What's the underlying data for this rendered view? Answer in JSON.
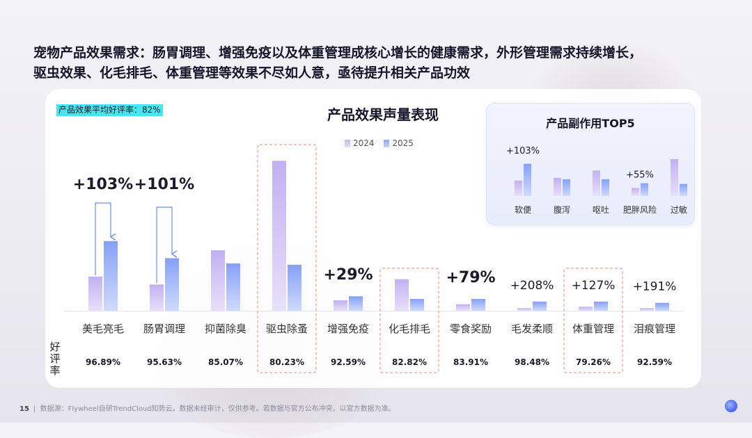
{
  "headline": {
    "line1": "宠物产品效果需求：肠胃调理、增强免疫以及体重管理成核心增长的健康需求，外形管理需求持续增长，",
    "line2": "驱虫效果、化毛排毛、体重管理等效果不尽如人意，亟待提升相关产品功效"
  },
  "avg_badge": "产品效果平均好评率：82%",
  "rate_label": "好评率",
  "footer": {
    "page": "15",
    "source": "数据源：Flywheel自研TrendCloud知势云。数据未经审计，仅供参考。若数据与官方公布冲突，以官方数据为准。"
  },
  "colors": {
    "series_2024": "#c9b9f3",
    "series_2025": "#8ea7f8",
    "highlight_border": "#f08a78",
    "badge_bg": "#46e6ee"
  },
  "chart_data": [
    {
      "type": "bar",
      "title": "产品效果声量表现",
      "categories": [
        "美毛亮毛",
        "肠胃调理",
        "抑菌除臭",
        "驱虫除蚤",
        "增强免疫",
        "化毛排毛",
        "零食奖励",
        "毛发柔顺",
        "体重管理",
        "泪痕管理"
      ],
      "series": [
        {
          "name": "2024",
          "values": [
            26,
            20,
            46,
            114,
            8,
            24,
            5,
            2,
            3,
            2
          ]
        },
        {
          "name": "2025",
          "values": [
            53,
            40,
            36,
            35,
            11,
            9,
            9,
            7,
            7,
            6
          ]
        }
      ],
      "growth_labels": [
        "+103%",
        "+101%",
        "",
        "",
        "+29%",
        "",
        "+79%",
        "+208%",
        "+127%",
        "+191%"
      ],
      "growth_bold": [
        true,
        true,
        false,
        false,
        true,
        false,
        true,
        false,
        false,
        false
      ],
      "positive_rates": [
        "96.89%",
        "95.63%",
        "85.07%",
        "80.23%",
        "92.59%",
        "82.82%",
        "83.91%",
        "98.48%",
        "79.26%",
        "92.59%"
      ],
      "highlighted": [
        "驱虫除蚤",
        "化毛排毛",
        "体重管理"
      ],
      "growth_arrows": [
        "美毛亮毛",
        "肠胃调理"
      ],
      "ylim": [
        0,
        120
      ],
      "legend_position": "top",
      "grid": false
    },
    {
      "type": "bar",
      "title": "产品副作用TOP5",
      "categories": [
        "软便",
        "腹泻",
        "呕吐",
        "肥胖风险",
        "过敏"
      ],
      "series": [
        {
          "name": "2024",
          "values": [
            23,
            27,
            38,
            12,
            55
          ]
        },
        {
          "name": "2025",
          "values": [
            48,
            25,
            25,
            19,
            18
          ]
        }
      ],
      "growth_labels": [
        "+103%",
        "",
        "",
        "+55%",
        ""
      ],
      "ylim": [
        0,
        60
      ],
      "grid": false
    }
  ]
}
